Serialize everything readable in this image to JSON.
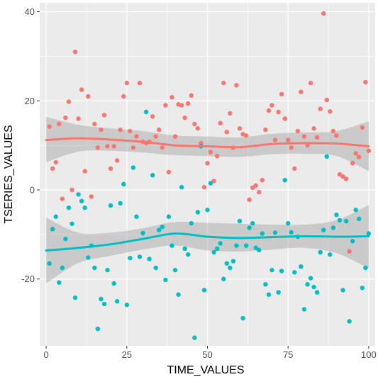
{
  "chart_data": {
    "type": "scatter",
    "xlabel": "TIME_VALUES",
    "ylabel": "TSERIES_VALUES",
    "xlim": [
      -2,
      102
    ],
    "ylim": [
      -35,
      42
    ],
    "xticks": [
      0,
      25,
      50,
      75,
      100
    ],
    "yticks": [
      -20,
      0,
      20,
      40
    ],
    "grid": true,
    "legend": "none",
    "panel_background": "#ebebeb",
    "grid_color": "#ffffff",
    "band_color": "#999999",
    "series": [
      {
        "color": "#f8766d",
        "points": [
          [
            1,
            14.2
          ],
          [
            2,
            4.8
          ],
          [
            3,
            6.2
          ],
          [
            4,
            14.8
          ],
          [
            5,
            -2
          ],
          [
            6,
            16.2
          ],
          [
            7,
            19.8
          ],
          [
            8,
            0
          ],
          [
            9,
            31
          ],
          [
            10,
            16
          ],
          [
            11,
            22.5
          ],
          [
            12,
            4.2
          ],
          [
            13,
            21
          ],
          [
            14,
            -1.5
          ],
          [
            15,
            14.8
          ],
          [
            16,
            9.5
          ],
          [
            17,
            13.5
          ],
          [
            18,
            16.8
          ],
          [
            19,
            9.8
          ],
          [
            20,
            4.8
          ],
          [
            21,
            9.8
          ],
          [
            22,
            6.6
          ],
          [
            23,
            13.5
          ],
          [
            24,
            21
          ],
          [
            25,
            24
          ],
          [
            26,
            13.2
          ],
          [
            27,
            9.5
          ],
          [
            28,
            12
          ],
          [
            29,
            24
          ],
          [
            30,
            10.8
          ],
          [
            31,
            10.5
          ],
          [
            32,
            10.8
          ],
          [
            33,
            16.5
          ],
          [
            34,
            12
          ],
          [
            35,
            13.5
          ],
          [
            36,
            9.5
          ],
          [
            37,
            19
          ],
          [
            38,
            4
          ],
          [
            39,
            20.8
          ],
          [
            40,
            12
          ],
          [
            41,
            19.2
          ],
          [
            42,
            19
          ],
          [
            43,
            16.2
          ],
          [
            44,
            19.4
          ],
          [
            45,
            21.2
          ],
          [
            46,
            14.8
          ],
          [
            47,
            13.8
          ],
          [
            48,
            10.5
          ],
          [
            49,
            0.6
          ],
          [
            50,
            6
          ],
          [
            51,
            8.5
          ],
          [
            52,
            2
          ],
          [
            53,
            7.6
          ],
          [
            54,
            15
          ],
          [
            55,
            24
          ],
          [
            56,
            13
          ],
          [
            57,
            17.2
          ],
          [
            58,
            9.5
          ],
          [
            59,
            23.5
          ],
          [
            60,
            13.8
          ],
          [
            61,
            12.5
          ],
          [
            62,
            12.2
          ],
          [
            63,
            -2.2
          ],
          [
            64,
            0.5
          ],
          [
            65,
            1
          ],
          [
            66,
            -0.5
          ],
          [
            67,
            2.2
          ],
          [
            68,
            13.5
          ],
          [
            69,
            17.8
          ],
          [
            70,
            19
          ],
          [
            71,
            11.2
          ],
          [
            72,
            17.5
          ],
          [
            73,
            21.5
          ],
          [
            74,
            16
          ],
          [
            75,
            11.2
          ],
          [
            76,
            9.5
          ],
          [
            77,
            4.8
          ],
          [
            78,
            13.2
          ],
          [
            79,
            22
          ],
          [
            80,
            12
          ],
          [
            81,
            10
          ],
          [
            82,
            24
          ],
          [
            83,
            13.8
          ],
          [
            84,
            11.8
          ],
          [
            85,
            18.2
          ],
          [
            86,
            39.6
          ],
          [
            87,
            20.2
          ],
          [
            88,
            17.6
          ],
          [
            89,
            13.2
          ],
          [
            90,
            12.2
          ],
          [
            91,
            3.5
          ],
          [
            92,
            3
          ],
          [
            93,
            2.5
          ],
          [
            94,
            -13.8
          ],
          [
            95,
            6
          ],
          [
            96,
            8.2
          ],
          [
            97,
            7.4
          ],
          [
            98,
            14
          ],
          [
            99,
            24.2
          ],
          [
            100,
            8.8
          ]
        ]
      },
      {
        "color": "#00bfc4",
        "points": [
          [
            1,
            -16.5
          ],
          [
            2,
            -8.8
          ],
          [
            3,
            -6
          ],
          [
            4,
            -20.8
          ],
          [
            5,
            -17.5
          ],
          [
            6,
            -11
          ],
          [
            7,
            -4
          ],
          [
            8,
            -7.6
          ],
          [
            9,
            -24.2
          ],
          [
            10,
            -1
          ],
          [
            11,
            -2.5
          ],
          [
            12,
            -4
          ],
          [
            13,
            -15.2
          ],
          [
            14,
            -12.5
          ],
          [
            15,
            -17.5
          ],
          [
            16,
            -31.2
          ],
          [
            17,
            -24.5
          ],
          [
            18,
            -25.6
          ],
          [
            19,
            -18
          ],
          [
            20,
            -3.5
          ],
          [
            21,
            -21
          ],
          [
            22,
            -25
          ],
          [
            23,
            -3
          ],
          [
            24,
            1.3
          ],
          [
            25,
            -25.8
          ],
          [
            26,
            -15.3
          ],
          [
            27,
            5
          ],
          [
            28,
            -6
          ],
          [
            29,
            -15
          ],
          [
            30,
            -9.7
          ],
          [
            31,
            17.5
          ],
          [
            32,
            -15.5
          ],
          [
            33,
            3.3
          ],
          [
            34,
            -17.5
          ],
          [
            35,
            -9
          ],
          [
            36,
            -8.3
          ],
          [
            37,
            -20.2
          ],
          [
            38,
            -6
          ],
          [
            39,
            -12.5
          ],
          [
            40,
            -18
          ],
          [
            41,
            -23.5
          ],
          [
            42,
            0.6
          ],
          [
            43,
            -13.2
          ],
          [
            44,
            -14.5
          ],
          [
            45,
            -7.5
          ],
          [
            46,
            -33.2
          ],
          [
            47,
            -5
          ],
          [
            48,
            9.8
          ],
          [
            49,
            -22.5
          ],
          [
            50,
            -4.5
          ],
          [
            51,
            1.5
          ],
          [
            52,
            -14
          ],
          [
            53,
            -13.2
          ],
          [
            54,
            -12
          ],
          [
            55,
            -20
          ],
          [
            56,
            -16.5
          ],
          [
            57,
            -17.5
          ],
          [
            58,
            -16
          ],
          [
            59,
            -12.5
          ],
          [
            60,
            -7
          ],
          [
            61,
            -28.8
          ],
          [
            62,
            -12.5
          ],
          [
            63,
            -8.5
          ],
          [
            64,
            -7.5
          ],
          [
            65,
            -13
          ],
          [
            66,
            -13.5
          ],
          [
            67,
            -9.8
          ],
          [
            68,
            -21.2
          ],
          [
            69,
            -23.5
          ],
          [
            70,
            -18
          ],
          [
            71,
            -9.6
          ],
          [
            72,
            -23
          ],
          [
            73,
            -18.2
          ],
          [
            74,
            2.2
          ],
          [
            75,
            -7.5
          ],
          [
            76,
            -9.5
          ],
          [
            77,
            -18.5
          ],
          [
            78,
            -10.5
          ],
          [
            79,
            -17.2
          ],
          [
            80,
            -26.8
          ],
          [
            81,
            -21.2
          ],
          [
            82,
            -19.8
          ],
          [
            83,
            -21.8
          ],
          [
            84,
            -23
          ],
          [
            85,
            -14
          ],
          [
            86,
            -9
          ],
          [
            87,
            7.5
          ],
          [
            88,
            -14.5
          ],
          [
            89,
            -8.5
          ],
          [
            90,
            -5.6
          ],
          [
            91,
            -6.8
          ],
          [
            92,
            -22.5
          ],
          [
            93,
            -7
          ],
          [
            94,
            -29.5
          ],
          [
            95,
            -11.5
          ],
          [
            96,
            -4.5
          ],
          [
            97,
            -6.5
          ],
          [
            98,
            -22
          ],
          [
            99,
            -17.5
          ],
          [
            100,
            -9.8
          ]
        ]
      }
    ],
    "smooth_lines": [
      {
        "color": "#f8766d",
        "x": [
          0,
          10,
          20,
          30,
          40,
          50,
          60,
          70,
          80,
          90,
          100
        ],
        "y": [
          11.2,
          11.6,
          11.3,
          10.8,
          10.0,
          9.8,
          9.6,
          10.3,
          10.5,
          10.4,
          9.8
        ],
        "band_lower": [
          6.2,
          8.6,
          8.8,
          8.4,
          7.8,
          7.6,
          7.4,
          8.0,
          8.1,
          7.6,
          4.2
        ],
        "band_upper": [
          16.4,
          14.6,
          13.8,
          13.2,
          12.2,
          12.0,
          11.8,
          12.6,
          12.9,
          13.2,
          15.4
        ]
      },
      {
        "color": "#00bfc4",
        "x": [
          0,
          10,
          20,
          30,
          40,
          50,
          60,
          70,
          80,
          90,
          100
        ],
        "y": [
          -13.6,
          -13.0,
          -12.2,
          -11.0,
          -9.8,
          -10.5,
          -10.8,
          -10.6,
          -10.4,
          -10.5,
          -10.4
        ],
        "band_lower": [
          -21.0,
          -16.4,
          -14.8,
          -13.4,
          -12.5,
          -13.6,
          -13.8,
          -13.4,
          -13.0,
          -14.2,
          -17.6
        ],
        "band_upper": [
          -6.2,
          -9.6,
          -9.6,
          -8.6,
          -7.2,
          -7.4,
          -7.6,
          -7.8,
          -7.8,
          -6.8,
          -3.4
        ]
      }
    ]
  }
}
